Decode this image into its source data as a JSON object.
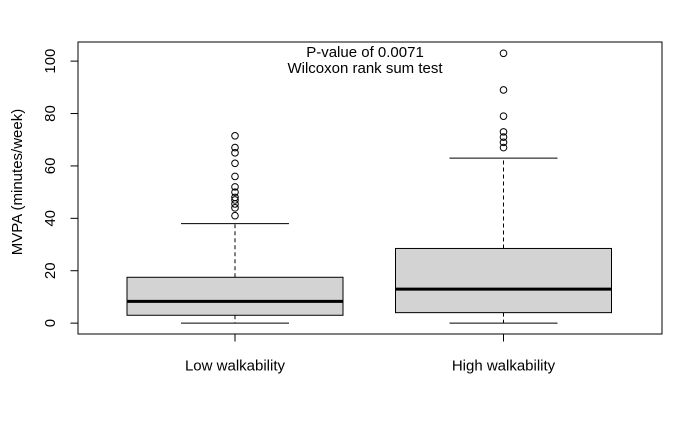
{
  "figure": {
    "background": "#ffffff",
    "line_color": "#000000",
    "box_fill": "#d3d3d3"
  },
  "chart_data": {
    "type": "boxplot",
    "title": "",
    "xlabel": "",
    "ylabel": "MVPA (minutes/week)",
    "yticks": [
      0,
      20,
      40,
      60,
      80,
      100
    ],
    "ylim": [
      -4.15,
      107.3
    ],
    "grid": false,
    "annotation_lines": [
      "P-value of 0.0071",
      "Wilcoxon rank sum test"
    ],
    "categories": [
      "Low walkability",
      "High walkability"
    ],
    "series": [
      {
        "name": "Low walkability",
        "whisker_low": 0,
        "q1": 3,
        "median": 8.3,
        "q3": 17.5,
        "whisker_high": 38,
        "outliers": [
          41,
          44,
          45.5,
          47,
          48,
          50,
          52,
          56,
          61,
          65,
          67,
          71.5
        ]
      },
      {
        "name": "High walkability",
        "whisker_low": 0,
        "q1": 4,
        "median": 13,
        "q3": 28.5,
        "whisker_high": 63,
        "outliers": [
          67,
          69,
          71,
          73,
          79,
          89,
          103
        ]
      }
    ]
  }
}
